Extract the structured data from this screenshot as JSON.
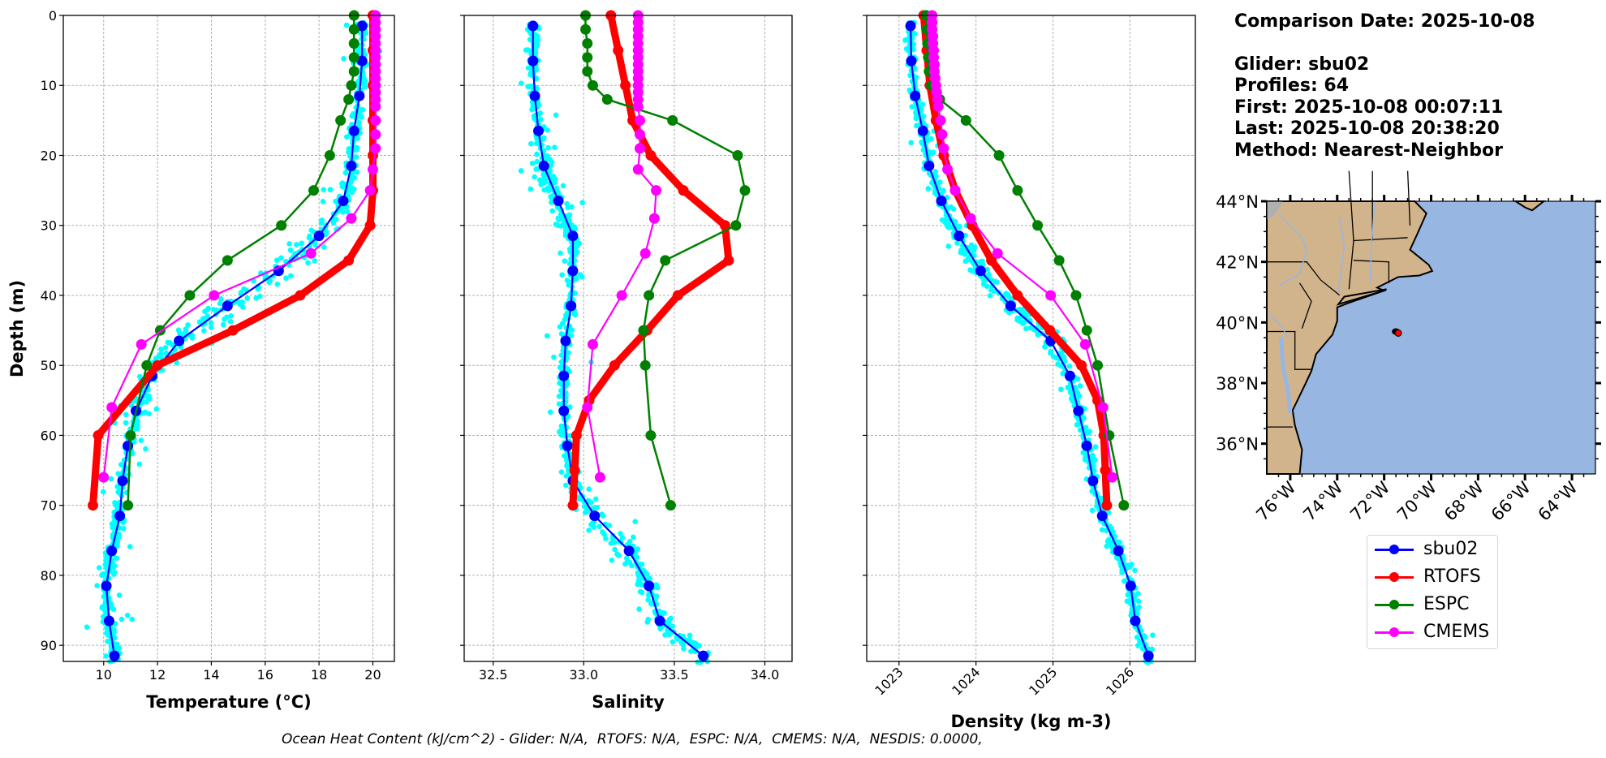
{
  "info": {
    "comparison_date": "Comparison Date: 2025-10-08",
    "glider": "Glider: sbu02",
    "profiles": "Profiles: 64",
    "first": "First: 2025-10-08 00:07:11",
    "last": "Last: 2025-10-08 20:38:20",
    "method": "Method: Nearest-Neighbor"
  },
  "footer": "Ocean Heat Content (kJ/cm^2) - Glider: N/A,  RTOFS: N/A,  ESPC: N/A,  CMEMS: N/A,  NESDIS: 0.0000,",
  "legend": [
    {
      "label": "sbu02",
      "color": "#0000ff"
    },
    {
      "label": "RTOFS",
      "color": "#ff0000"
    },
    {
      "label": "ESPC",
      "color": "#008000"
    },
    {
      "label": "CMEMS",
      "color": "#ff00ff"
    }
  ],
  "colors": {
    "glider_scatter": "#00ffff",
    "land": "#d2b48c",
    "ocean": "#97b6e1",
    "lakes_rivers": "#97b6e1",
    "grid": "#b0b0b0"
  },
  "chart_data": [
    {
      "type": "line",
      "title": "",
      "xlabel": "Temperature (°C)",
      "ylabel": "Depth (m)",
      "xlim": [
        8.5,
        20.8
      ],
      "ylim": [
        92.3,
        0
      ],
      "xticks": [
        10,
        12,
        14,
        16,
        18,
        20
      ],
      "yticks": [
        0,
        10,
        20,
        30,
        40,
        50,
        60,
        70,
        80,
        90
      ],
      "grid": true,
      "series": [
        {
          "name": "sbu02",
          "depth": [
            1.5,
            6.5,
            11.5,
            16.5,
            21.5,
            26.5,
            31.5,
            36.5,
            41.5,
            46.5,
            51.5,
            56.5,
            61.5,
            66.5,
            71.5,
            76.5,
            81.5,
            86.5,
            91.5
          ],
          "values": [
            19.6,
            19.6,
            19.5,
            19.3,
            19.2,
            18.9,
            18.0,
            16.5,
            14.6,
            12.8,
            11.8,
            11.2,
            10.9,
            10.7,
            10.6,
            10.3,
            10.1,
            10.2,
            10.4
          ]
        },
        {
          "name": "RTOFS",
          "depth": [
            0,
            5,
            10,
            15,
            20,
            25,
            30,
            35,
            40,
            45,
            50,
            60,
            70
          ],
          "values": [
            20.0,
            20.0,
            20.0,
            20.0,
            20.0,
            20.0,
            19.9,
            19.1,
            17.3,
            14.8,
            12.0,
            9.8,
            9.6
          ]
        },
        {
          "name": "ESPC",
          "depth": [
            0,
            2,
            4,
            6,
            8,
            10,
            12,
            15,
            20,
            25,
            30,
            35,
            40,
            45,
            50,
            60,
            70
          ],
          "values": [
            19.3,
            19.3,
            19.3,
            19.3,
            19.3,
            19.2,
            19.1,
            18.8,
            18.4,
            17.8,
            16.6,
            14.6,
            13.2,
            12.1,
            11.6,
            11.0,
            10.9
          ]
        },
        {
          "name": "CMEMS",
          "depth": [
            0,
            1,
            2,
            3,
            4,
            5,
            6,
            7,
            8,
            9,
            10,
            11,
            12,
            13,
            15,
            17,
            19,
            22,
            25,
            29,
            34,
            40,
            47,
            56,
            66
          ],
          "values": [
            20.1,
            20.1,
            20.1,
            20.1,
            20.1,
            20.1,
            20.1,
            20.1,
            20.1,
            20.1,
            20.1,
            20.1,
            20.1,
            20.1,
            20.1,
            20.1,
            20.1,
            20.0,
            19.9,
            19.2,
            17.7,
            14.1,
            11.4,
            10.3,
            10.0
          ]
        }
      ],
      "scatter": {
        "name": "glider profiles",
        "color": "#00ffff",
        "x_range_by_depth": "cloud spanning ~8.6–20.2 °C"
      }
    },
    {
      "type": "line",
      "title": "",
      "xlabel": "Salinity",
      "ylabel": "",
      "xlim": [
        32.34,
        34.15
      ],
      "ylim": [
        92.3,
        0
      ],
      "xticks": [
        32.5,
        33.0,
        33.5,
        34.0
      ],
      "yticks": [
        0,
        10,
        20,
        30,
        40,
        50,
        60,
        70,
        80,
        90
      ],
      "grid": true,
      "series": [
        {
          "name": "sbu02",
          "depth": [
            1.5,
            6.5,
            11.5,
            16.5,
            21.5,
            26.5,
            31.5,
            36.5,
            41.5,
            46.5,
            51.5,
            56.5,
            61.5,
            66.5,
            71.5,
            76.5,
            81.5,
            86.5,
            91.5
          ],
          "values": [
            32.72,
            32.72,
            32.73,
            32.75,
            32.78,
            32.86,
            32.94,
            32.94,
            32.93,
            32.9,
            32.89,
            32.89,
            32.91,
            32.94,
            33.06,
            33.25,
            33.36,
            33.42,
            33.66
          ]
        },
        {
          "name": "RTOFS",
          "depth": [
            0,
            5,
            10,
            15,
            20,
            25,
            30,
            35,
            40,
            45,
            50,
            55,
            60,
            65,
            70
          ],
          "values": [
            33.15,
            33.19,
            33.23,
            33.27,
            33.37,
            33.55,
            33.78,
            33.8,
            33.52,
            33.35,
            33.17,
            33.03,
            32.96,
            32.95,
            32.94
          ]
        },
        {
          "name": "ESPC",
          "depth": [
            0,
            2,
            4,
            6,
            8,
            10,
            12,
            15,
            20,
            25,
            30,
            35,
            40,
            45,
            50,
            60,
            70
          ],
          "values": [
            33.01,
            33.01,
            33.02,
            33.02,
            33.02,
            33.05,
            33.13,
            33.49,
            33.85,
            33.89,
            33.84,
            33.45,
            33.36,
            33.33,
            33.34,
            33.37,
            33.48
          ]
        },
        {
          "name": "CMEMS",
          "depth": [
            0,
            1,
            2,
            3,
            4,
            5,
            6,
            7,
            8,
            9,
            10,
            11,
            12,
            13,
            15,
            17,
            19,
            22,
            25,
            29,
            34,
            40,
            47,
            56,
            66
          ],
          "values": [
            33.3,
            33.3,
            33.3,
            33.3,
            33.3,
            33.3,
            33.3,
            33.3,
            33.3,
            33.3,
            33.3,
            33.3,
            33.3,
            33.3,
            33.31,
            33.31,
            33.31,
            33.3,
            33.4,
            33.39,
            33.34,
            33.21,
            33.05,
            33.02,
            33.09
          ]
        }
      ]
    },
    {
      "type": "line",
      "title": "",
      "xlabel": "Density (kg m-3)",
      "ylabel": "",
      "xlim": [
        1022.58,
        1026.85
      ],
      "ylim": [
        92.3,
        0
      ],
      "xticks": [
        1023,
        1024,
        1025,
        1026
      ],
      "yticks": [
        0,
        10,
        20,
        30,
        40,
        50,
        60,
        70,
        80,
        90
      ],
      "grid": true,
      "series": [
        {
          "name": "sbu02",
          "depth": [
            1.5,
            6.5,
            11.5,
            16.5,
            21.5,
            26.5,
            31.5,
            36.5,
            41.5,
            46.5,
            51.5,
            56.5,
            61.5,
            66.5,
            71.5,
            76.5,
            81.5,
            86.5,
            91.5
          ],
          "values": [
            1023.15,
            1023.16,
            1023.21,
            1023.31,
            1023.39,
            1023.55,
            1023.78,
            1024.06,
            1024.45,
            1024.97,
            1025.22,
            1025.33,
            1025.44,
            1025.52,
            1025.64,
            1025.85,
            1026.01,
            1026.07,
            1026.24
          ]
        },
        {
          "name": "RTOFS",
          "depth": [
            0,
            5,
            10,
            15,
            20,
            25,
            30,
            35,
            40,
            45,
            50,
            55,
            60,
            65,
            70
          ],
          "values": [
            1023.32,
            1023.36,
            1023.4,
            1023.48,
            1023.58,
            1023.73,
            1023.95,
            1024.2,
            1024.54,
            1024.96,
            1025.37,
            1025.58,
            1025.66,
            1025.68,
            1025.7
          ]
        },
        {
          "name": "ESPC",
          "depth": [
            0,
            2,
            4,
            6,
            8,
            10,
            12,
            15,
            20,
            25,
            30,
            35,
            40,
            45,
            50,
            60,
            70
          ],
          "values": [
            1023.35,
            1023.36,
            1023.37,
            1023.38,
            1023.39,
            1023.42,
            1023.53,
            1023.87,
            1024.3,
            1024.54,
            1024.8,
            1025.08,
            1025.3,
            1025.44,
            1025.58,
            1025.73,
            1025.92
          ]
        },
        {
          "name": "CMEMS",
          "depth": [
            0,
            1,
            2,
            3,
            4,
            5,
            6,
            7,
            8,
            9,
            10,
            11,
            12,
            13,
            15,
            17,
            19,
            22,
            25,
            29,
            34,
            40,
            47,
            56,
            66
          ],
          "values": [
            1023.43,
            1023.43,
            1023.43,
            1023.44,
            1023.44,
            1023.45,
            1023.45,
            1023.46,
            1023.46,
            1023.47,
            1023.48,
            1023.49,
            1023.5,
            1023.51,
            1023.54,
            1023.56,
            1023.58,
            1023.63,
            1023.73,
            1023.93,
            1024.28,
            1024.97,
            1025.42,
            1025.65,
            1025.77
          ]
        }
      ]
    },
    {
      "type": "map",
      "title": "",
      "lat_ticks": [
        "36°N",
        "38°N",
        "40°N",
        "42°N",
        "44°N"
      ],
      "lon_ticks": [
        "76°W",
        "74°W",
        "72°W",
        "70°W",
        "68°W",
        "66°W",
        "64°W"
      ],
      "extent": {
        "lon": [
          -77,
          -63
        ],
        "lat": [
          35,
          44
        ]
      },
      "glider_track": {
        "lon": -71.5,
        "lat": 39.7,
        "color": "#000000"
      },
      "glider_last": {
        "lon": -71.4,
        "lat": 39.65,
        "color": "#ff0000"
      }
    }
  ]
}
